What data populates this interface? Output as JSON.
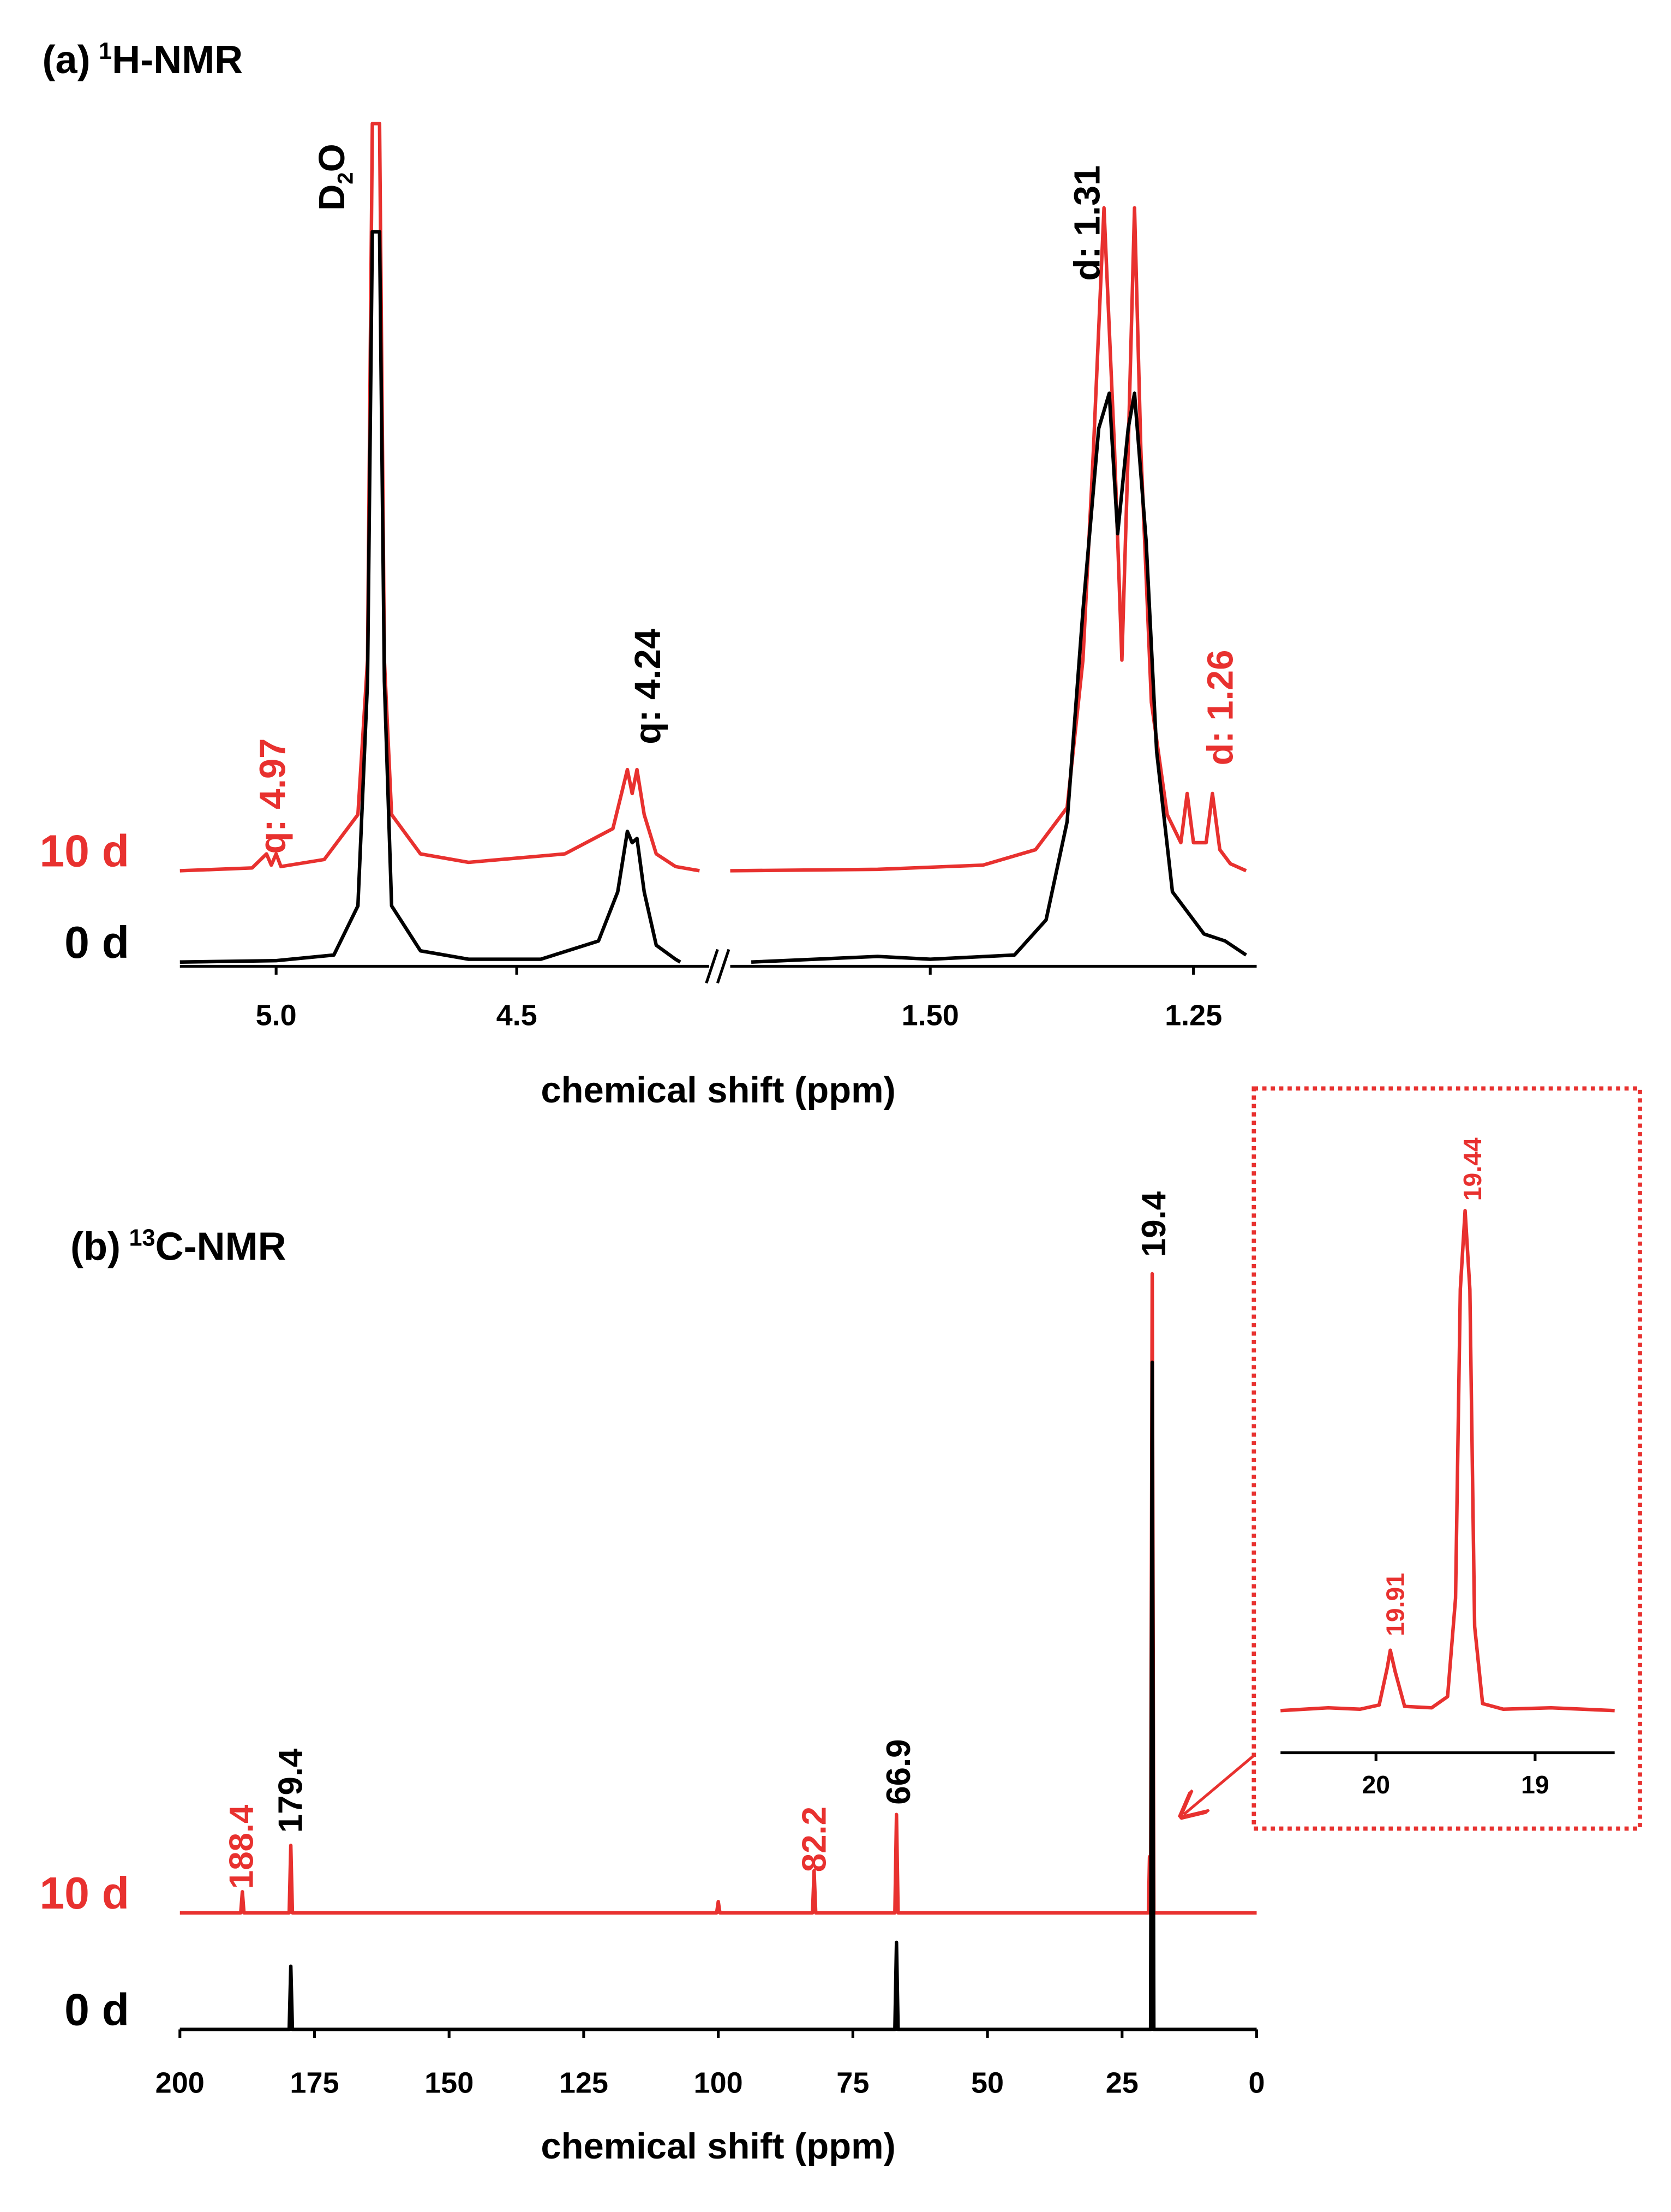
{
  "chart_data": [
    {
      "type": "line",
      "title": {
        "label": "(a)",
        "isotope": "1",
        "nucleus": "H-NMR"
      },
      "x_label": "chemical shift (ppm)",
      "xlim_segments": [
        [
          5.2,
          4.1
        ],
        [
          1.69,
          1.19
        ]
      ],
      "xticks": [
        {
          "value": 5.0,
          "label": "5.0"
        },
        4.5,
        {
          "value": 1.5,
          "label": "1.50"
        },
        1.25
      ],
      "series": [
        {
          "name": "10 d",
          "color": "#e8312f",
          "x": [
            5.2,
            5.05,
            5.02,
            5.01,
            5.0,
            4.99,
            4.9,
            4.83,
            4.81,
            4.8,
            4.785,
            4.775,
            4.76,
            4.7,
            4.6,
            4.4,
            4.3,
            4.27,
            4.26,
            4.25,
            4.235,
            4.21,
            4.17,
            4.12,
            null,
            1.69,
            1.55,
            1.45,
            1.4,
            1.37,
            1.355,
            1.345,
            1.335,
            1.325,
            1.318,
            1.312,
            1.306,
            1.3,
            1.29,
            1.275,
            1.262,
            1.256,
            1.25,
            1.238,
            1.232,
            1.225,
            1.215,
            1.2
          ],
          "values": [
            0,
            2,
            12,
            4,
            12,
            3,
            8,
            40,
            150,
            532,
            532,
            150,
            40,
            12,
            6,
            12,
            30,
            72,
            55,
            72,
            40,
            12,
            3,
            0,
            null,
            0,
            1,
            4,
            15,
            45,
            150,
            300,
            472,
            300,
            150,
            300,
            472,
            300,
            120,
            40,
            20,
            55,
            20,
            20,
            55,
            15,
            5,
            0
          ]
        },
        {
          "name": "0 d",
          "color": "#000000",
          "x": [
            5.2,
            5.0,
            4.88,
            4.83,
            4.81,
            4.8,
            4.785,
            4.775,
            4.76,
            4.7,
            4.6,
            4.45,
            4.33,
            4.29,
            4.27,
            4.26,
            4.25,
            4.235,
            4.21,
            4.17,
            4.16,
            null,
            1.67,
            1.55,
            1.5,
            1.42,
            1.39,
            1.37,
            1.355,
            1.34,
            1.33,
            1.322,
            1.312,
            1.306,
            1.295,
            1.285,
            1.27,
            1.24,
            1.22,
            1.2
          ],
          "values": [
            0,
            1,
            5,
            40,
            200,
            520,
            520,
            200,
            40,
            8,
            2,
            2,
            15,
            50,
            93,
            85,
            88,
            50,
            12,
            2,
            0,
            null,
            0,
            4,
            2,
            5,
            30,
            100,
            250,
            380,
            405,
            305,
            380,
            405,
            300,
            150,
            50,
            20,
            15,
            5
          ]
        }
      ],
      "annotations": [
        {
          "parts": [
            "D",
            "2",
            "O"
          ],
          "color": "#000000"
        },
        {
          "text": "q: 4.97",
          "color": "#e8312f"
        },
        {
          "text": "q: 4.24",
          "color": "#000000"
        },
        {
          "text": "d: 1.31",
          "color": "#000000"
        },
        {
          "text": "d: 1.26",
          "color": "#e8312f"
        }
      ]
    },
    {
      "type": "line",
      "title": {
        "label": "(b)",
        "isotope": "13",
        "nucleus": "C-NMR"
      },
      "x_label": "chemical shift (ppm)",
      "xlim": [
        200,
        0
      ],
      "xticks": [
        200,
        175,
        150,
        125,
        100,
        75,
        50,
        25,
        0
      ],
      "series": [
        {
          "name": "10 d",
          "color": "#e8312f",
          "x": [
            200,
            188.7,
            188.4,
            188.1,
            179.7,
            179.4,
            179.1,
            100.3,
            100,
            99.7,
            82.5,
            82.2,
            81.9,
            67.2,
            66.9,
            66.6,
            20.1,
            19.9,
            19.7,
            19.4,
            19.1,
            0
          ],
          "values": [
            0,
            0,
            15,
            0,
            0,
            48,
            0,
            0,
            8,
            0,
            0,
            30,
            0,
            0,
            70,
            0,
            0,
            40,
            0,
            455,
            0,
            0
          ]
        },
        {
          "name": "0 d",
          "color": "#000000",
          "x": [
            200,
            179.7,
            179.4,
            179.1,
            67.2,
            66.9,
            66.6,
            19.7,
            19.4,
            19.1,
            0
          ],
          "values": [
            0,
            0,
            45,
            0,
            0,
            62,
            0,
            0,
            475,
            0,
            0
          ]
        }
      ],
      "annotations": [
        {
          "text": "188.4",
          "color": "#e8312f"
        },
        {
          "text": "179.4",
          "color": "#000000"
        },
        {
          "text": "82.2",
          "color": "#e8312f"
        },
        {
          "text": "66.9",
          "color": "#000000"
        },
        {
          "text": "19.4",
          "color": "#000000"
        }
      ]
    },
    {
      "type": "line",
      "xlim": [
        20.6,
        18.5
      ],
      "xticks": [
        20,
        19
      ],
      "series": [
        {
          "color": "#e8312f",
          "x": [
            20.6,
            20.3,
            20.1,
            19.98,
            19.93,
            19.91,
            19.88,
            19.82,
            19.65,
            19.55,
            19.5,
            19.47,
            19.44,
            19.41,
            19.38,
            19.33,
            19.2,
            18.9,
            18.7,
            18.5
          ],
          "values": [
            0,
            2,
            1,
            4,
            30,
            43,
            28,
            3,
            2,
            10,
            80,
            300,
            356,
            300,
            60,
            5,
            1,
            2,
            1,
            0
          ]
        }
      ],
      "annotations": [
        {
          "text": "19.91",
          "color": "#e8312f"
        },
        {
          "text": "19.44",
          "color": "#e8312f"
        }
      ]
    }
  ]
}
